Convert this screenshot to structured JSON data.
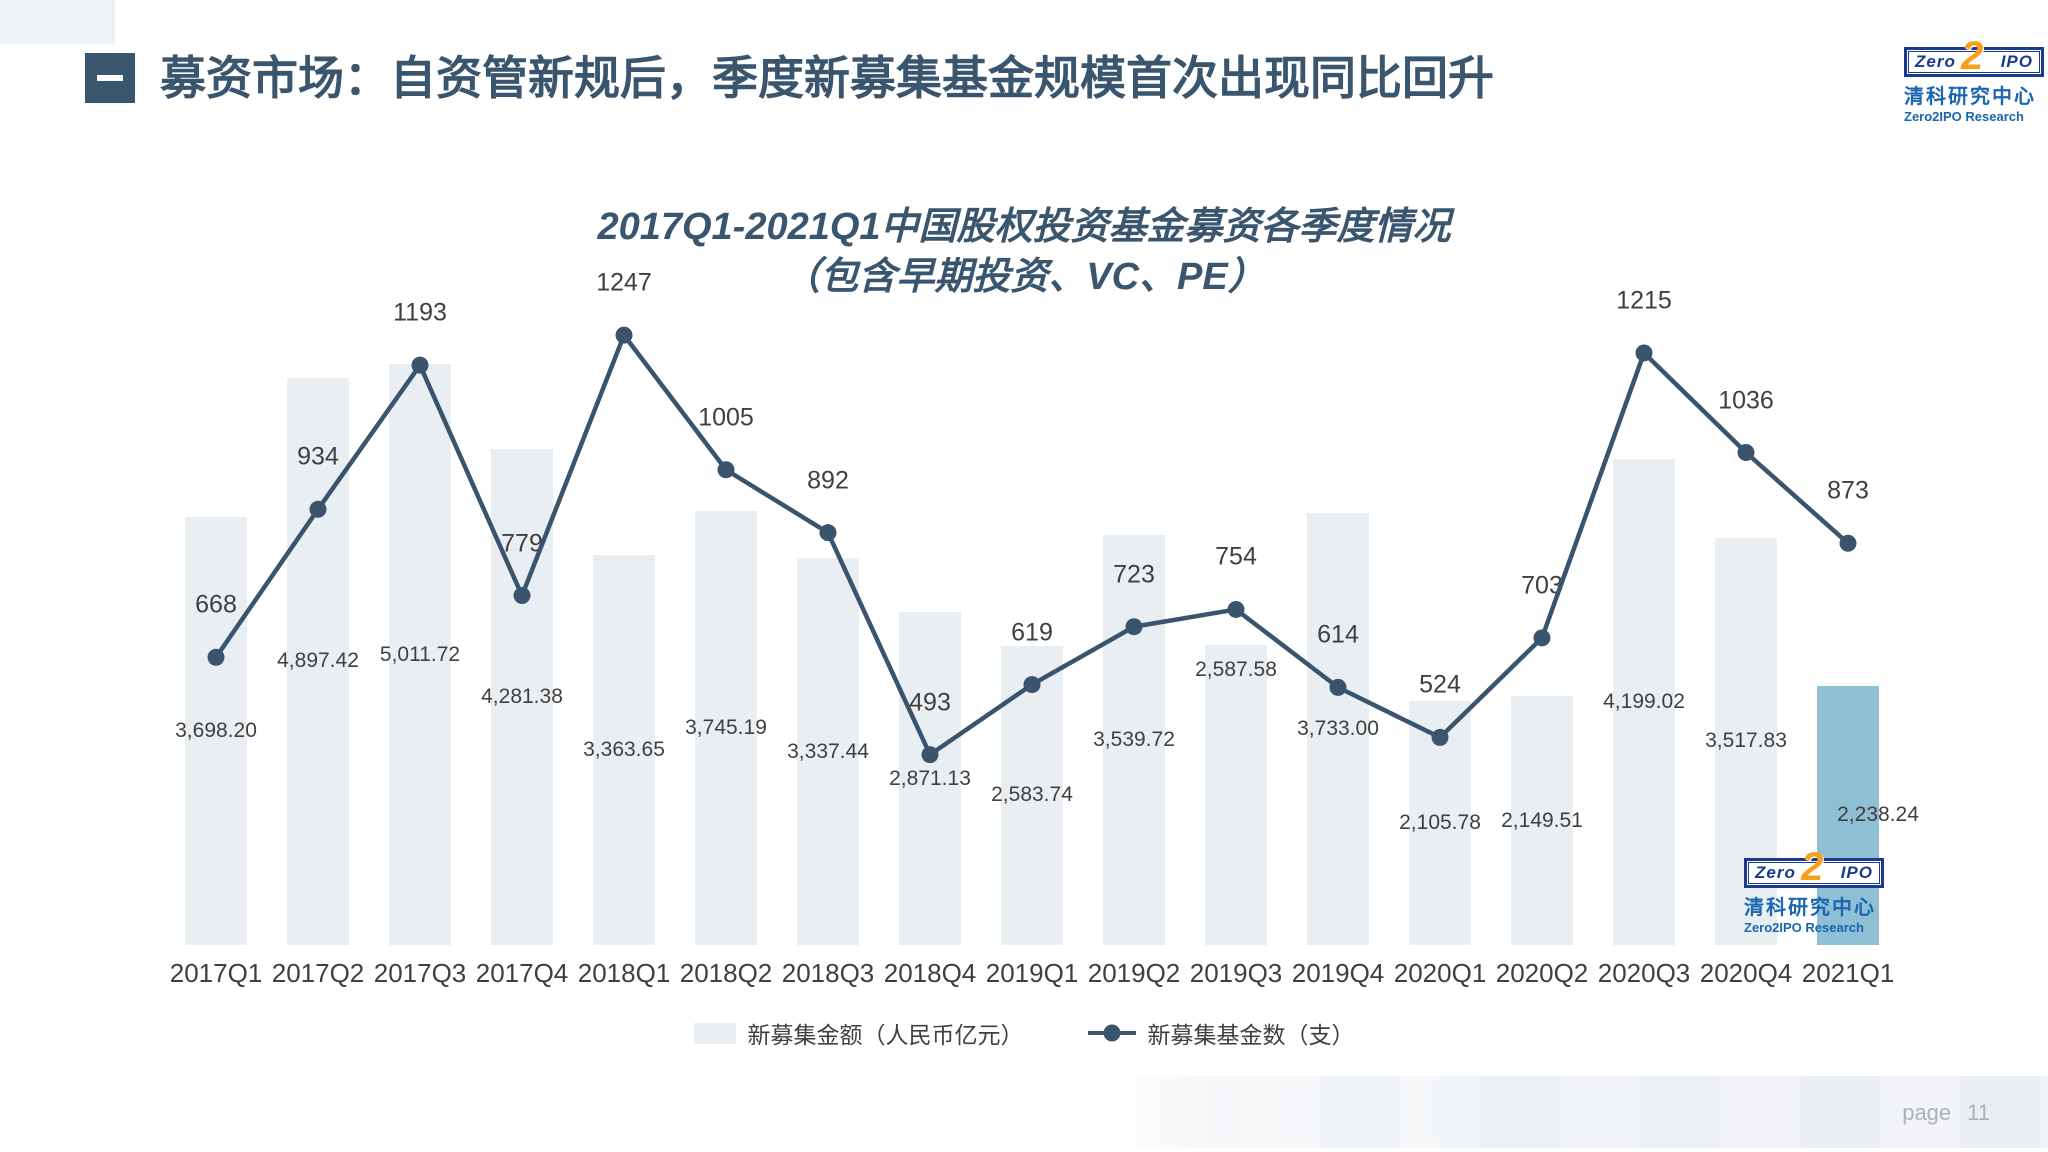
{
  "header": {
    "title": "募资市场：自资管新规后，季度新募集基金规模首次出现同比回升"
  },
  "logo": {
    "box_left": "Zero",
    "box_digit": "2",
    "box_right": "IPO",
    "cn": "清科研究中心",
    "en": "Zero2IPO Research"
  },
  "footer": {
    "page_label": "page",
    "page_number": "11"
  },
  "chart_data": {
    "type": "bar+line combo",
    "title": "2017Q1-2021Q1中国股权投资基金募资各季度情况",
    "subtitle": "（包含早期投资、VC、PE）",
    "categories": [
      "2017Q1",
      "2017Q2",
      "2017Q3",
      "2017Q4",
      "2018Q1",
      "2018Q2",
      "2018Q3",
      "2018Q4",
      "2019Q1",
      "2019Q2",
      "2019Q3",
      "2019Q4",
      "2020Q1",
      "2020Q2",
      "2020Q3",
      "2020Q4",
      "2021Q1"
    ],
    "series": [
      {
        "name": "新募集金额（人民币亿元）",
        "type": "bar",
        "values": [
          3698.2,
          4897.42,
          5011.72,
          4281.38,
          3363.65,
          3745.19,
          3337.44,
          2871.13,
          2583.74,
          3539.72,
          2587.58,
          3733.0,
          2105.78,
          2149.51,
          4199.02,
          3517.83,
          2238.24
        ]
      },
      {
        "name": "新募集基金数（支）",
        "type": "line",
        "values": [
          668,
          934,
          1193,
          779,
          1247,
          1005,
          892,
          493,
          619,
          723,
          754,
          614,
          524,
          703,
          1215,
          1036,
          873
        ]
      }
    ],
    "highlight_index": 16,
    "bar_axis_max": 6000,
    "line_axis_max": 1400,
    "grid": "off",
    "legend_position": "bottom",
    "bar_label_adjust": {
      "10": {
        "dy": -125
      },
      "16": {
        "dx": 30
      }
    },
    "colors": {
      "bar": "#e9eef3",
      "bar_highlight": "#8fbfd4",
      "line": "#3a546e",
      "value_label": "#3f3f3f",
      "title": "#3a556e"
    }
  }
}
